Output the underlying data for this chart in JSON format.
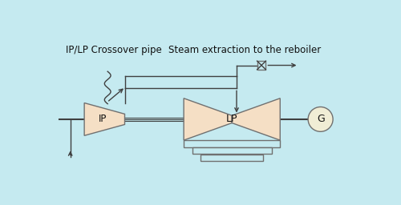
{
  "bg_color": "#c5eaf0",
  "turbine_fill": "#f5dfc5",
  "edge_color": "#707070",
  "line_color": "#404040",
  "text_color": "#111111",
  "label_ip": "IP",
  "label_lp": "LP",
  "label_g": "G",
  "label_crossover": "IP/LP Crossover pipe",
  "label_steam": "Steam extraction to the reboiler",
  "font_size": 8.5,
  "fig_w": 5.0,
  "fig_h": 2.56,
  "dpi": 100,
  "xmax": 10.0,
  "ymax": 5.12
}
